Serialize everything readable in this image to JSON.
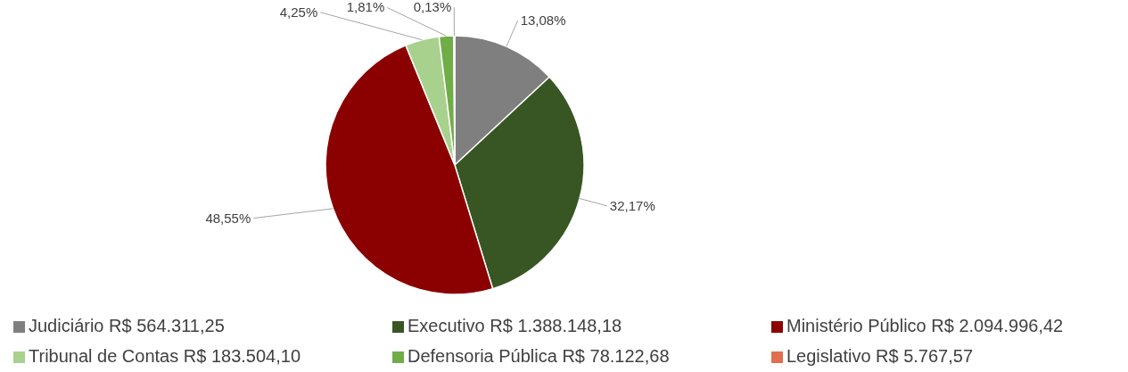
{
  "chart_data": {
    "type": "pie",
    "categories": [
      "Judiciário R$ 564.311,25",
      "Executivo  R$ 1.388.148,18",
      "Ministério Público  R$ 2.094.996,42",
      "Tribunal de Contas  R$ 183.504,10",
      "Defensoria Pública  R$ 78.122,68",
      "Legislativo  R$ 5.767,57"
    ],
    "values": [
      13.08,
      32.17,
      48.55,
      4.25,
      1.81,
      0.13
    ],
    "value_labels": [
      "13,08%",
      "32,17%",
      "48,55%",
      "4,25%",
      "1,81%",
      "0,13%"
    ],
    "colors": [
      "#7f7f7f",
      "#375623",
      "#8b0000",
      "#a9d18e",
      "#70ad47",
      "#e07050"
    ],
    "legend": "bottom"
  }
}
